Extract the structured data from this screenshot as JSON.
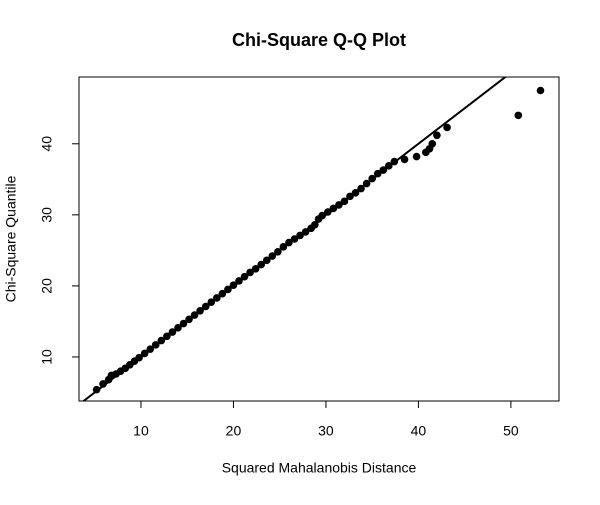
{
  "chart_data": {
    "type": "scatter",
    "title": "Chi-Square Q-Q Plot",
    "x_label": "Squared Mahalanobis Distance",
    "y_label": "Chi-Square Quantile",
    "color": "#000000",
    "x": [
      5.2,
      5.9,
      6.5,
      6.8,
      7.3,
      7.8,
      8.3,
      8.8,
      9.3,
      9.8,
      10.4,
      11,
      11.6,
      12.2,
      12.8,
      13.4,
      14,
      14.6,
      15.2,
      15.8,
      16.4,
      17,
      17.6,
      18.2,
      18.8,
      19.4,
      20,
      20.6,
      21.2,
      21.8,
      22.4,
      23,
      23.6,
      24.2,
      24.8,
      25.4,
      26,
      26.6,
      27.2,
      27.8,
      28.4,
      28.8,
      29.2,
      29.6,
      30.2,
      30.8,
      31.4,
      32,
      32.6,
      33.2,
      33.8,
      34.4,
      35,
      35.6,
      36.2,
      36.8,
      37.4,
      38.5,
      39.8,
      40.8,
      41.2,
      41.5,
      42,
      43.1,
      50.8,
      53.2
    ],
    "values": [
      5.4,
      6.2,
      6.8,
      7.4,
      7.6,
      8.0,
      8.4,
      8.9,
      9.4,
      9.9,
      10.5,
      11.1,
      11.7,
      12.3,
      12.9,
      13.5,
      14.1,
      14.7,
      15.3,
      15.9,
      16.5,
      17.1,
      17.7,
      18.3,
      18.9,
      19.5,
      20.1,
      20.7,
      21.3,
      21.9,
      22.4,
      23.0,
      23.6,
      24.2,
      24.8,
      25.5,
      26.1,
      26.6,
      27.1,
      27.6,
      28.1,
      28.6,
      29.4,
      29.9,
      30.4,
      30.9,
      31.4,
      31.9,
      32.6,
      33.1,
      33.7,
      34.4,
      35.1,
      35.8,
      36.3,
      36.9,
      37.5,
      37.8,
      38.2,
      38.8,
      39.3,
      40.0,
      41.2,
      42.3,
      44.0,
      47.5
    ],
    "reference_line": {
      "slope": 1,
      "intercept": 0
    },
    "xlim": [
      3.3,
      55.2
    ],
    "ylim": [
      3.8,
      49.4
    ],
    "xticks": [
      10,
      20,
      30,
      40,
      50
    ],
    "yticks": [
      10,
      20,
      30,
      40
    ]
  }
}
